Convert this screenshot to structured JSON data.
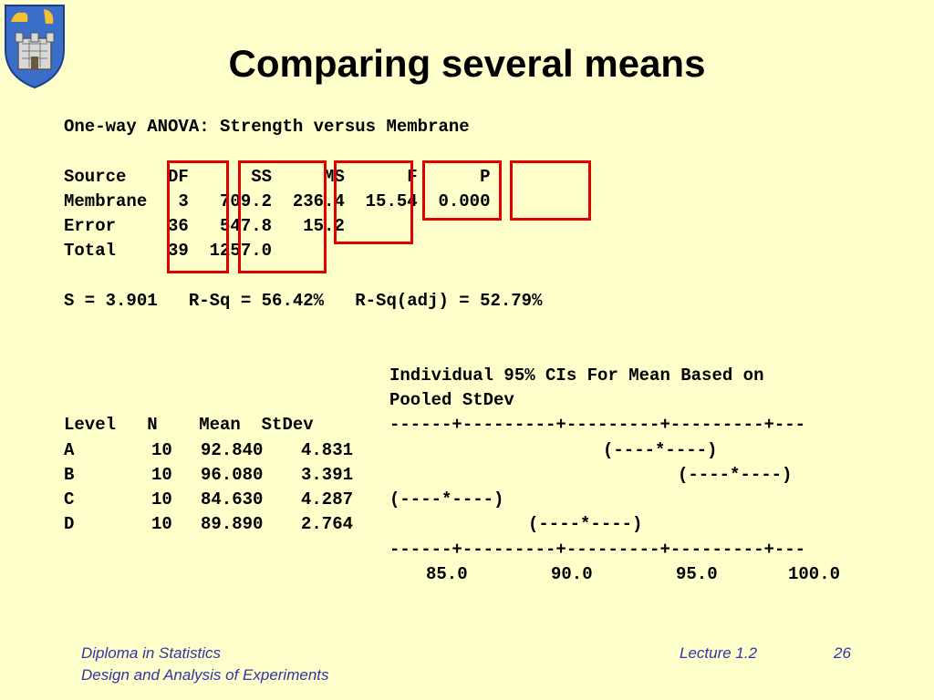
{
  "title": "Comparing several means",
  "anova": {
    "heading": "One-way ANOVA: Strength versus Membrane",
    "header_row": "Source    DF      SS     MS      F      P",
    "rows": [
      "Membrane   3   709.2  236.4  15.54  0.000",
      "Error     36   547.8   15.2",
      "Total     39  1257.0"
    ],
    "summary": "S = 3.901   R-Sq = 56.42%   R-Sq(adj) = 52.79%"
  },
  "ci": {
    "heading_1": "Individual 95% CIs For Mean Based on",
    "heading_2": "Pooled StDev",
    "header": "Level   N    Mean  StDev",
    "ruler": "------+---------+---------+---------+---",
    "levels": [
      {
        "level": "A",
        "n": "10",
        "mean": "92.840",
        "stdev": "4.831",
        "interval": "(----*----)"
      },
      {
        "level": "B",
        "n": "10",
        "mean": "96.080",
        "stdev": "3.391",
        "interval": "(----*----)"
      },
      {
        "level": "C",
        "n": "10",
        "mean": "84.630",
        "stdev": "4.287",
        "interval": "(----*----)"
      },
      {
        "level": "D",
        "n": "10",
        "mean": "89.890",
        "stdev": "2.764",
        "interval": "(----*----)"
      }
    ],
    "axis_labels": [
      "85.0",
      "90.0",
      "95.0",
      "100.0"
    ]
  },
  "footer": {
    "course": "Diploma in Statistics",
    "module": "Design and Analysis of Experiments",
    "lecture": "Lecture 1.2",
    "page": "26"
  },
  "colors": {
    "background": "#ffffcc",
    "highlight": "#e00000",
    "footer_text": "#3333aa"
  }
}
